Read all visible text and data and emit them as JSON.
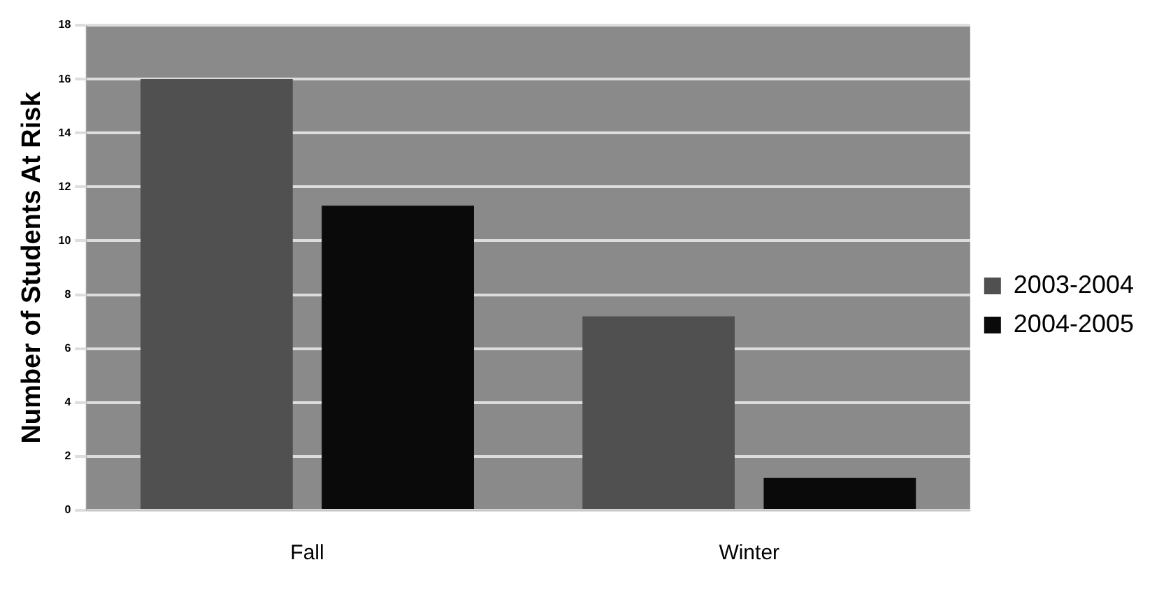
{
  "chart_data": {
    "type": "bar",
    "ylabel": "Number of Students At Risk",
    "categories": [
      "Fall",
      "Winter"
    ],
    "series": [
      {
        "name": "2003-2004",
        "color": "#505050",
        "values": [
          16,
          7.2
        ]
      },
      {
        "name": "2004-2005",
        "color": "#0a0a0a",
        "values": [
          11.3,
          1.2
        ]
      }
    ],
    "ylim": [
      0,
      18
    ],
    "yticks": [
      0,
      2,
      4,
      6,
      8,
      10,
      12,
      14,
      16,
      18
    ],
    "grid": "y",
    "legend": "right"
  }
}
